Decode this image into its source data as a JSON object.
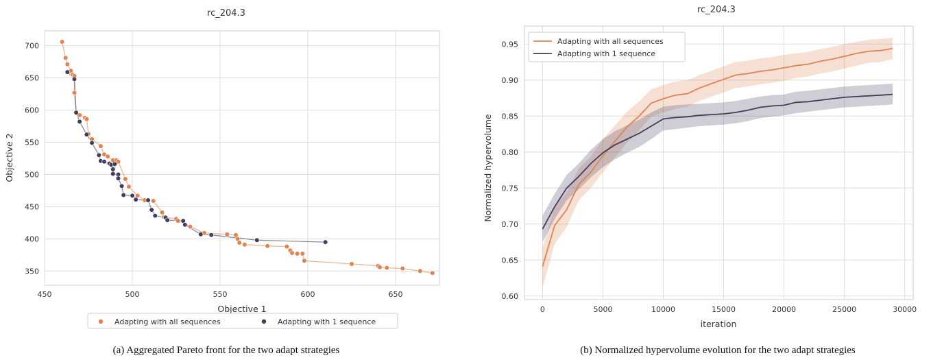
{
  "chart_data": [
    {
      "type": "scatter",
      "title": "rc_204.3",
      "xlabel": "Objective 1",
      "ylabel": "Objective 2",
      "xlim": [
        450,
        675
      ],
      "ylim": [
        328,
        723
      ],
      "xticks": [
        "450",
        "500",
        "550",
        "600",
        "650"
      ],
      "yticks": [
        "350",
        "400",
        "450",
        "500",
        "550",
        "600",
        "650",
        "700"
      ],
      "grid": true,
      "legend_position": "bottom-center",
      "caption": "(a)  Aggregated Pareto front for the two adapt strategies",
      "series": [
        {
          "name": "Adapting with all sequences",
          "color": "#dd8452",
          "points": [
            [
              460,
              706
            ],
            [
              462,
              681
            ],
            [
              463,
              671
            ],
            [
              465,
              661
            ],
            [
              466,
              655
            ],
            [
              467,
              653
            ],
            [
              467,
              627
            ],
            [
              468,
              597
            ],
            [
              470,
              592
            ],
            [
              473,
              588
            ],
            [
              474,
              586
            ],
            [
              475,
              563
            ],
            [
              477,
              555
            ],
            [
              482,
              544
            ],
            [
              484,
              531
            ],
            [
              486,
              528
            ],
            [
              489,
              522
            ],
            [
              491,
              522
            ],
            [
              492,
              520
            ],
            [
              496,
              493
            ],
            [
              498,
              481
            ],
            [
              503,
              467
            ],
            [
              507,
              460
            ],
            [
              512,
              459
            ],
            [
              517,
              441
            ],
            [
              518,
              434
            ],
            [
              525,
              431
            ],
            [
              526,
              428
            ],
            [
              533,
              419
            ],
            [
              541,
              409
            ],
            [
              554,
              407
            ],
            [
              559,
              406
            ],
            [
              560,
              400
            ],
            [
              561,
              394
            ],
            [
              564,
              391
            ],
            [
              577,
              389
            ],
            [
              588,
              388
            ],
            [
              590,
              382
            ],
            [
              591,
              378
            ],
            [
              594,
              377
            ],
            [
              597,
              377
            ],
            [
              598,
              366
            ],
            [
              625,
              361
            ],
            [
              640,
              358
            ],
            [
              641,
              356
            ],
            [
              645,
              355
            ],
            [
              654,
              354
            ],
            [
              664,
              350
            ],
            [
              671,
              347
            ]
          ]
        },
        {
          "name": "Adapting with 1 sequence",
          "color": "#3f3d5a",
          "points": [
            [
              463,
              659
            ],
            [
              467,
              648
            ],
            [
              468,
              596
            ],
            [
              470,
              582
            ],
            [
              474,
              562
            ],
            [
              477,
              549
            ],
            [
              481,
              530
            ],
            [
              482,
              521
            ],
            [
              484,
              520
            ],
            [
              487,
              517
            ],
            [
              488,
              515
            ],
            [
              490,
              516
            ],
            [
              489,
              508
            ],
            [
              489,
              501
            ],
            [
              492,
              500
            ],
            [
              492,
              494
            ],
            [
              494,
              482
            ],
            [
              495,
              468
            ],
            [
              500,
              467
            ],
            [
              502,
              461
            ],
            [
              509,
              460
            ],
            [
              511,
              445
            ],
            [
              513,
              436
            ],
            [
              519,
              433
            ],
            [
              520,
              429
            ],
            [
              529,
              428
            ],
            [
              530,
              422
            ],
            [
              539,
              407
            ],
            [
              545,
              406
            ],
            [
              571,
              398
            ],
            [
              610,
              395
            ]
          ]
        }
      ]
    },
    {
      "type": "line",
      "title": "rc_204.3",
      "xlabel": "iteration",
      "ylabel": "Normalized hypervolume",
      "xlim": [
        -1500,
        30700
      ],
      "ylim": [
        0.595,
        0.975
      ],
      "xticks": [
        "0",
        "5000",
        "10000",
        "15000",
        "20000",
        "25000",
        "30000"
      ],
      "yticks": [
        "0.60",
        "0.65",
        "0.70",
        "0.75",
        "0.80",
        "0.85",
        "0.90",
        "0.95"
      ],
      "grid": true,
      "legend_position": "top-left",
      "caption": "(b)  Normalized hypervolume evolution for the two adapt strategies",
      "x": [
        0,
        1000,
        2000,
        3000,
        4000,
        5000,
        6000,
        7000,
        8000,
        9000,
        10000,
        11000,
        12000,
        13000,
        14000,
        15000,
        16000,
        17000,
        18000,
        19000,
        20000,
        21000,
        22000,
        23000,
        24000,
        25000,
        26000,
        27000,
        28000,
        29000
      ],
      "series": [
        {
          "name": "Adapting with all sequences",
          "color": "#dd8452",
          "values": [
            0.641,
            0.698,
            0.72,
            0.755,
            0.772,
            0.795,
            0.815,
            0.835,
            0.85,
            0.868,
            0.874,
            0.879,
            0.881,
            0.889,
            0.895,
            0.901,
            0.907,
            0.909,
            0.912,
            0.914,
            0.917,
            0.92,
            0.922,
            0.926,
            0.929,
            0.933,
            0.937,
            0.94,
            0.941,
            0.944
          ],
          "lower": [
            0.612,
            0.672,
            0.696,
            0.733,
            0.75,
            0.772,
            0.793,
            0.813,
            0.83,
            0.849,
            0.855,
            0.86,
            0.863,
            0.871,
            0.877,
            0.883,
            0.889,
            0.891,
            0.894,
            0.896,
            0.899,
            0.903,
            0.905,
            0.909,
            0.912,
            0.916,
            0.92,
            0.924,
            0.925,
            0.929
          ],
          "upper": [
            0.668,
            0.723,
            0.744,
            0.777,
            0.794,
            0.818,
            0.837,
            0.856,
            0.87,
            0.887,
            0.893,
            0.898,
            0.9,
            0.907,
            0.913,
            0.919,
            0.925,
            0.927,
            0.93,
            0.932,
            0.935,
            0.937,
            0.939,
            0.943,
            0.946,
            0.95,
            0.953,
            0.956,
            0.957,
            0.959
          ]
        },
        {
          "name": "Adapting with 1 sequence",
          "color": "#3f3d5a",
          "values": [
            0.693,
            0.724,
            0.75,
            0.766,
            0.784,
            0.799,
            0.81,
            0.818,
            0.826,
            0.836,
            0.846,
            0.848,
            0.849,
            0.851,
            0.852,
            0.853,
            0.855,
            0.858,
            0.862,
            0.864,
            0.865,
            0.869,
            0.87,
            0.872,
            0.874,
            0.876,
            0.877,
            0.878,
            0.879,
            0.88
          ],
          "lower": [
            0.675,
            0.707,
            0.733,
            0.748,
            0.765,
            0.779,
            0.79,
            0.799,
            0.807,
            0.818,
            0.83,
            0.832,
            0.834,
            0.836,
            0.837,
            0.838,
            0.84,
            0.843,
            0.847,
            0.849,
            0.851,
            0.854,
            0.856,
            0.858,
            0.86,
            0.862,
            0.863,
            0.864,
            0.865,
            0.866
          ],
          "upper": [
            0.712,
            0.742,
            0.768,
            0.784,
            0.803,
            0.818,
            0.829,
            0.837,
            0.845,
            0.855,
            0.863,
            0.865,
            0.866,
            0.867,
            0.868,
            0.869,
            0.871,
            0.874,
            0.877,
            0.879,
            0.88,
            0.884,
            0.885,
            0.887,
            0.889,
            0.891,
            0.892,
            0.893,
            0.894,
            0.895
          ]
        }
      ]
    }
  ]
}
